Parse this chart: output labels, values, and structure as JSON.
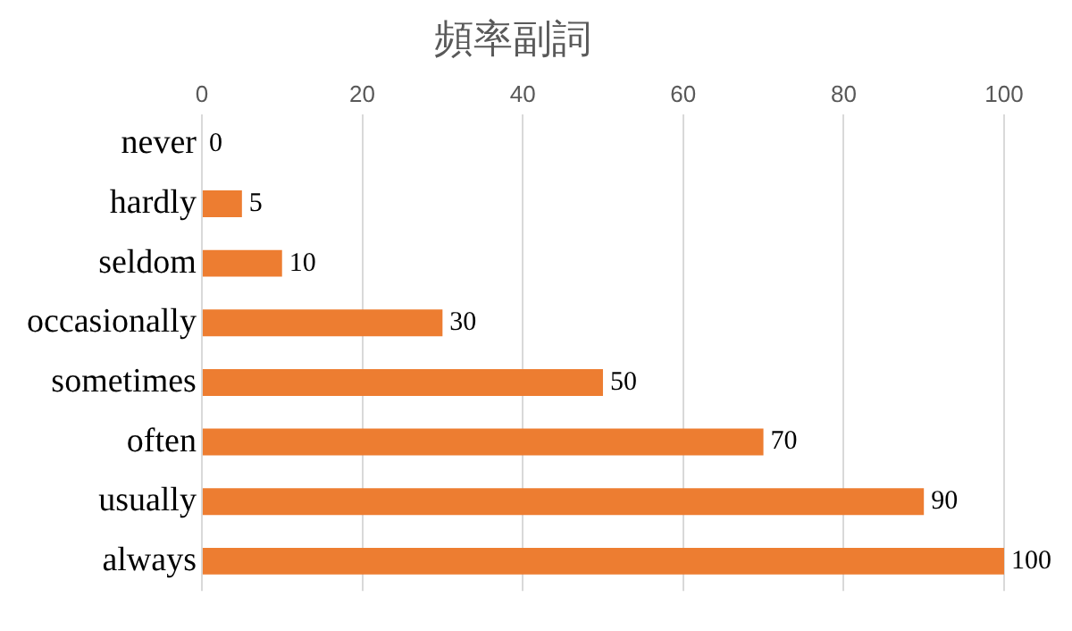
{
  "chart_data": {
    "type": "bar",
    "orientation": "horizontal",
    "title": "頻率副詞",
    "categories": [
      "never",
      "hardly",
      "seldom",
      "occasionally",
      "sometimes",
      "often",
      "usually",
      "always"
    ],
    "values": [
      0,
      5,
      10,
      30,
      50,
      70,
      90,
      100
    ],
    "color": "#ed7d31",
    "xlim": [
      0,
      100
    ],
    "xticks": [
      0,
      20,
      40,
      60,
      80,
      100
    ],
    "grid": "x",
    "data_labels": true,
    "legend": false
  }
}
